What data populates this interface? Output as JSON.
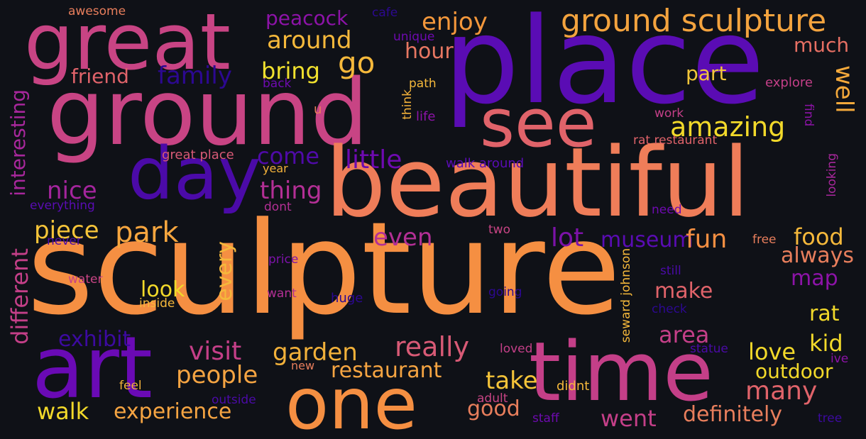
{
  "words": [
    {
      "text": "sculpture",
      "color": "#f58f42"
    },
    {
      "text": "place",
      "color": "#5a0cb4"
    },
    {
      "text": "ground",
      "color": "#c84484"
    },
    {
      "text": "beautiful",
      "color": "#ef7d59"
    },
    {
      "text": "great",
      "color": "#c84484"
    },
    {
      "text": "time",
      "color": "#c43f88"
    },
    {
      "text": "art",
      "color": "#6a0ab5"
    },
    {
      "text": "one",
      "color": "#f58f42"
    },
    {
      "text": "day",
      "color": "#4b0aa8"
    },
    {
      "text": "see",
      "color": "#e0636a"
    },
    {
      "text": "ground sculpture",
      "color": "#f3a33e"
    },
    {
      "text": "amazing",
      "color": "#f2d92a"
    },
    {
      "text": "around",
      "color": "#f5b83b"
    },
    {
      "text": "peacock",
      "color": "#8d13a8"
    },
    {
      "text": "enjoy",
      "color": "#f3973b"
    },
    {
      "text": "go",
      "color": "#f5b83b"
    },
    {
      "text": "hour",
      "color": "#e77762"
    },
    {
      "text": "much",
      "color": "#e66f63"
    },
    {
      "text": "bring",
      "color": "#f1e12e"
    },
    {
      "text": "family",
      "color": "#2c0891"
    },
    {
      "text": "friend",
      "color": "#e0636a"
    },
    {
      "text": "part",
      "color": "#f2c63a"
    },
    {
      "text": "well",
      "color": "#f4a93b"
    },
    {
      "text": "little",
      "color": "#6e0ab0"
    },
    {
      "text": "come",
      "color": "#4f0aa8"
    },
    {
      "text": "nice",
      "color": "#a4259d"
    },
    {
      "text": "thing",
      "color": "#b32f95"
    },
    {
      "text": "park",
      "color": "#f7a63f"
    },
    {
      "text": "piece",
      "color": "#f5c439"
    },
    {
      "text": "even",
      "color": "#b32f95"
    },
    {
      "text": "lot",
      "color": "#7c12a8"
    },
    {
      "text": "museum",
      "color": "#5a0cb4"
    },
    {
      "text": "fun",
      "color": "#f58f42"
    },
    {
      "text": "food",
      "color": "#f5b83b"
    },
    {
      "text": "always",
      "color": "#e87e5c"
    },
    {
      "text": "interesting",
      "color": "#a8279c"
    },
    {
      "text": "different",
      "color": "#c43f88"
    },
    {
      "text": "look",
      "color": "#f2d92a"
    },
    {
      "text": "every",
      "color": "#f5b83b"
    },
    {
      "text": "make",
      "color": "#e0636a"
    },
    {
      "text": "map",
      "color": "#8d13a8"
    },
    {
      "text": "rat",
      "color": "#f2d92a"
    },
    {
      "text": "area",
      "color": "#c43f88"
    },
    {
      "text": "kid",
      "color": "#f2d92a"
    },
    {
      "text": "exhibit",
      "color": "#3c0aa0"
    },
    {
      "text": "visit",
      "color": "#c43f88"
    },
    {
      "text": "garden",
      "color": "#f2b13a"
    },
    {
      "text": "really",
      "color": "#d85a76"
    },
    {
      "text": "love",
      "color": "#f2d92a"
    },
    {
      "text": "people",
      "color": "#f5a442"
    },
    {
      "text": "restaurant",
      "color": "#f5a442"
    },
    {
      "text": "take",
      "color": "#f5c439"
    },
    {
      "text": "outdoor",
      "color": "#f2d92a"
    },
    {
      "text": "many",
      "color": "#e0636a"
    },
    {
      "text": "walk",
      "color": "#f2d92a"
    },
    {
      "text": "experience",
      "color": "#f5a442"
    },
    {
      "text": "good",
      "color": "#e87e5c"
    },
    {
      "text": "went",
      "color": "#c43f88"
    },
    {
      "text": "definitely",
      "color": "#e87e5c"
    },
    {
      "text": "awesome",
      "color": "#e87e5c"
    },
    {
      "text": "cafe",
      "color": "#2c0891"
    },
    {
      "text": "unique",
      "color": "#6e0ab0"
    },
    {
      "text": "path",
      "color": "#f5b83b"
    },
    {
      "text": "back",
      "color": "#6e0ab0"
    },
    {
      "text": "u",
      "color": "#e87e5c"
    },
    {
      "text": "think",
      "color": "#f2b13a"
    },
    {
      "text": "life",
      "color": "#8d13a8"
    },
    {
      "text": "explore",
      "color": "#c43f88"
    },
    {
      "text": "work",
      "color": "#c43f88"
    },
    {
      "text": "find",
      "color": "#8d13a8"
    },
    {
      "text": "rat restaurant",
      "color": "#e0636a"
    },
    {
      "text": "great place",
      "color": "#d85a76"
    },
    {
      "text": "year",
      "color": "#f2b13a"
    },
    {
      "text": "walk around",
      "color": "#5a0cb4"
    },
    {
      "text": "looking",
      "color": "#a8279c"
    },
    {
      "text": "everything",
      "color": "#5a0cb4"
    },
    {
      "text": "dont",
      "color": "#b32f95"
    },
    {
      "text": "need",
      "color": "#6e0ab0"
    },
    {
      "text": "two",
      "color": "#c84484"
    },
    {
      "text": "never",
      "color": "#4b0aa8"
    },
    {
      "text": "free",
      "color": "#e87e5c"
    },
    {
      "text": "price",
      "color": "#7c12a8"
    },
    {
      "text": "seward johnson",
      "color": "#f5b83b"
    },
    {
      "text": "still",
      "color": "#4b0aa8"
    },
    {
      "text": "water",
      "color": "#c84484"
    },
    {
      "text": "want",
      "color": "#b32f95"
    },
    {
      "text": "going",
      "color": "#2c0891"
    },
    {
      "text": "inside",
      "color": "#f5b83b"
    },
    {
      "text": "huge",
      "color": "#2c0891"
    },
    {
      "text": "check",
      "color": "#2c0891"
    },
    {
      "text": "statue",
      "color": "#4b0aa8"
    },
    {
      "text": "loved",
      "color": "#c43f88"
    },
    {
      "text": "ive",
      "color": "#8d13a8"
    },
    {
      "text": "feel",
      "color": "#f2b13a"
    },
    {
      "text": "new",
      "color": "#e87e5c"
    },
    {
      "text": "didnt",
      "color": "#f5b83b"
    },
    {
      "text": "adult",
      "color": "#c84484"
    },
    {
      "text": "outside",
      "color": "#4b0aa8"
    },
    {
      "text": "staff",
      "color": "#6e0ab0"
    },
    {
      "text": "tree",
      "color": "#3c0aa0"
    }
  ]
}
